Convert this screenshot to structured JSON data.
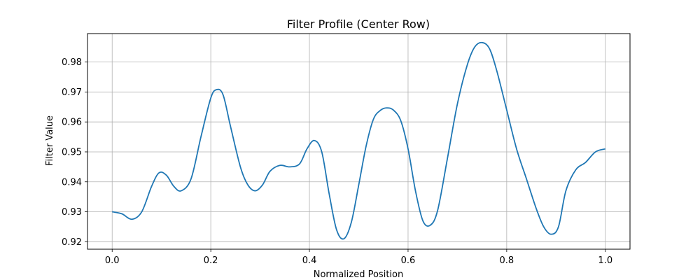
{
  "chart_data": {
    "type": "line",
    "title": "Filter Profile (Center Row)",
    "xlabel": "Normalized Position",
    "ylabel": "Filter Value",
    "xlim": [
      -0.05,
      1.05
    ],
    "ylim": [
      0.9175,
      0.9895
    ],
    "grid": true,
    "xticks": [
      0.0,
      0.2,
      0.4,
      0.6,
      0.8,
      1.0
    ],
    "xtick_labels": [
      "0.0",
      "0.2",
      "0.4",
      "0.6",
      "0.8",
      "1.0"
    ],
    "yticks": [
      0.92,
      0.93,
      0.94,
      0.95,
      0.96,
      0.97,
      0.98
    ],
    "ytick_labels": [
      "0.92",
      "0.93",
      "0.94",
      "0.95",
      "0.96",
      "0.97",
      "0.98"
    ],
    "line_color": "#1f77b4",
    "series": [
      {
        "x": [
          0.0,
          0.02,
          0.04,
          0.06,
          0.08,
          0.095,
          0.11,
          0.125,
          0.14,
          0.16,
          0.18,
          0.2,
          0.212,
          0.225,
          0.24,
          0.26,
          0.275,
          0.29,
          0.305,
          0.32,
          0.34,
          0.36,
          0.38,
          0.395,
          0.41,
          0.425,
          0.44,
          0.455,
          0.47,
          0.485,
          0.5,
          0.515,
          0.53,
          0.545,
          0.557,
          0.57,
          0.585,
          0.6,
          0.615,
          0.63,
          0.645,
          0.66,
          0.68,
          0.7,
          0.72,
          0.735,
          0.75,
          0.765,
          0.78,
          0.8,
          0.82,
          0.84,
          0.86,
          0.875,
          0.89,
          0.905,
          0.92,
          0.94,
          0.96,
          0.98,
          1.0
        ],
        "y": [
          0.93,
          0.9293,
          0.9275,
          0.93,
          0.9385,
          0.943,
          0.9422,
          0.9385,
          0.937,
          0.941,
          0.955,
          0.968,
          0.9708,
          0.969,
          0.9585,
          0.945,
          0.939,
          0.937,
          0.939,
          0.9435,
          0.9455,
          0.945,
          0.946,
          0.951,
          0.9538,
          0.95,
          0.936,
          0.924,
          0.921,
          0.9265,
          0.939,
          0.952,
          0.961,
          0.964,
          0.9647,
          0.964,
          0.9605,
          0.951,
          0.937,
          0.927,
          0.9255,
          0.9305,
          0.948,
          0.966,
          0.979,
          0.985,
          0.9865,
          0.9845,
          0.977,
          0.964,
          0.951,
          0.941,
          0.931,
          0.925,
          0.9225,
          0.925,
          0.937,
          0.944,
          0.9465,
          0.95,
          0.951
        ]
      }
    ]
  }
}
